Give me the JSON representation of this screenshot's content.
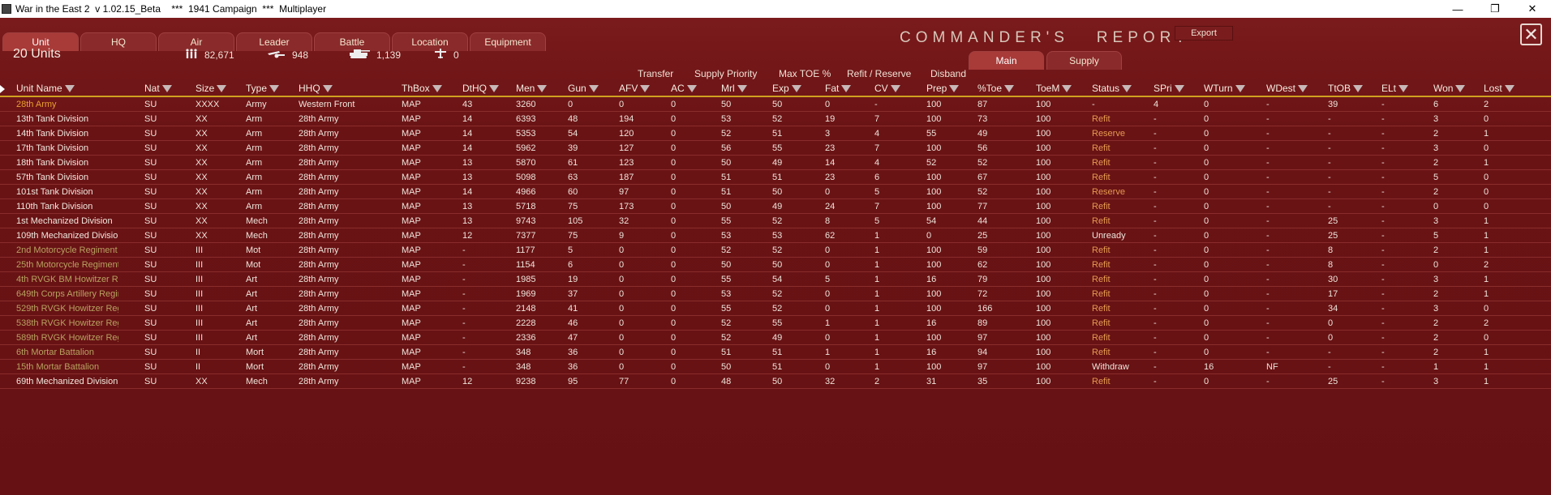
{
  "window": {
    "title": "War in the East 2  v 1.02.15_Beta    ***  1941 Campaign  ***  Multiplayer",
    "controls": {
      "minimize": "—",
      "restore": "❐",
      "close": "✕"
    }
  },
  "tabs": [
    "Unit",
    "HQ",
    "Air",
    "Leader",
    "Battle",
    "Location",
    "Equipment"
  ],
  "report_title": "COMMANDER'S   REPORT",
  "export_label": "Export",
  "close_label": "✕",
  "summary": {
    "units_count": "20 Units",
    "men": "82,671",
    "guns": "948",
    "afv": "1,139",
    "aircraft": "0"
  },
  "subtabs": [
    "Main",
    "Supply"
  ],
  "actions": [
    "Transfer",
    "Supply Priority",
    "Max TOE %",
    "Refit / Reserve",
    "Disband"
  ],
  "columns": [
    "Unit Name",
    "Nat",
    "Size",
    "Type",
    "HHQ",
    "ThBox",
    "DtHQ",
    "Men",
    "Gun",
    "AFV",
    "AC",
    "Mrl",
    "Exp",
    "Fat",
    "CV",
    "Prep",
    "%Toe",
    "ToeM",
    "Status",
    "SPri",
    "WTurn",
    "WDest",
    "TtOB",
    "ELt",
    "Won",
    "Lost"
  ],
  "rows": [
    {
      "style": "hq",
      "cells": [
        "28th Army",
        "SU",
        "XXXX",
        "Army",
        "Western Front",
        "MAP",
        "43",
        "3260",
        "0",
        "0",
        "0",
        "50",
        "50",
        "0",
        "-",
        "100",
        "87",
        "100",
        "-",
        "4",
        "0",
        "-",
        "39",
        "-",
        "6",
        "2"
      ]
    },
    {
      "style": "",
      "cells": [
        "13th Tank Division",
        "SU",
        "XX",
        "Arm",
        "28th Army",
        "MAP",
        "14",
        "6393",
        "48",
        "194",
        "0",
        "53",
        "52",
        "19",
        "7",
        "100",
        "73",
        "100",
        "Refit",
        "-",
        "0",
        "-",
        "-",
        "-",
        "3",
        "0"
      ]
    },
    {
      "style": "",
      "cells": [
        "14th Tank Division",
        "SU",
        "XX",
        "Arm",
        "28th Army",
        "MAP",
        "14",
        "5353",
        "54",
        "120",
        "0",
        "52",
        "51",
        "3",
        "4",
        "55",
        "49",
        "100",
        "Reserve",
        "-",
        "0",
        "-",
        "-",
        "-",
        "2",
        "1"
      ]
    },
    {
      "style": "",
      "cells": [
        "17th Tank Division",
        "SU",
        "XX",
        "Arm",
        "28th Army",
        "MAP",
        "14",
        "5962",
        "39",
        "127",
        "0",
        "56",
        "55",
        "23",
        "7",
        "100",
        "56",
        "100",
        "Refit",
        "-",
        "0",
        "-",
        "-",
        "-",
        "3",
        "0"
      ]
    },
    {
      "style": "",
      "cells": [
        "18th Tank Division",
        "SU",
        "XX",
        "Arm",
        "28th Army",
        "MAP",
        "13",
        "5870",
        "61",
        "123",
        "0",
        "50",
        "49",
        "14",
        "4",
        "52",
        "52",
        "100",
        "Refit",
        "-",
        "0",
        "-",
        "-",
        "-",
        "2",
        "1"
      ]
    },
    {
      "style": "",
      "cells": [
        "57th Tank Division",
        "SU",
        "XX",
        "Arm",
        "28th Army",
        "MAP",
        "13",
        "5098",
        "63",
        "187",
        "0",
        "51",
        "51",
        "23",
        "6",
        "100",
        "67",
        "100",
        "Refit",
        "-",
        "0",
        "-",
        "-",
        "-",
        "5",
        "0"
      ]
    },
    {
      "style": "",
      "cells": [
        "101st Tank Division",
        "SU",
        "XX",
        "Arm",
        "28th Army",
        "MAP",
        "14",
        "4966",
        "60",
        "97",
        "0",
        "51",
        "50",
        "0",
        "5",
        "100",
        "52",
        "100",
        "Reserve",
        "-",
        "0",
        "-",
        "-",
        "-",
        "2",
        "0"
      ]
    },
    {
      "style": "",
      "cells": [
        "110th Tank Division",
        "SU",
        "XX",
        "Arm",
        "28th Army",
        "MAP",
        "13",
        "5718",
        "75",
        "173",
        "0",
        "50",
        "49",
        "24",
        "7",
        "100",
        "77",
        "100",
        "Refit",
        "-",
        "0",
        "-",
        "-",
        "-",
        "0",
        "0"
      ]
    },
    {
      "style": "",
      "cells": [
        "1st Mechanized Division",
        "SU",
        "XX",
        "Mech",
        "28th Army",
        "MAP",
        "13",
        "9743",
        "105",
        "32",
        "0",
        "55",
        "52",
        "8",
        "5",
        "54",
        "44",
        "100",
        "Refit",
        "-",
        "0",
        "-",
        "25",
        "-",
        "3",
        "1"
      ]
    },
    {
      "style": "",
      "cells": [
        "109th Mechanized Division",
        "SU",
        "XX",
        "Mech",
        "28th Army",
        "MAP",
        "12",
        "7377",
        "75",
        "9",
        "0",
        "53",
        "53",
        "62",
        "1",
        "0",
        "25",
        "100",
        "Unready",
        "-",
        "0",
        "-",
        "25",
        "-",
        "5",
        "1"
      ]
    },
    {
      "style": "olive",
      "cells": [
        "2nd Motorcycle Regiment",
        "SU",
        "III",
        "Mot",
        "28th Army",
        "MAP",
        "-",
        "1177",
        "5",
        "0",
        "0",
        "52",
        "52",
        "0",
        "1",
        "100",
        "59",
        "100",
        "Refit",
        "-",
        "0",
        "-",
        "8",
        "-",
        "2",
        "1"
      ]
    },
    {
      "style": "olive",
      "cells": [
        "25th Motorcycle Regiment",
        "SU",
        "III",
        "Mot",
        "28th Army",
        "MAP",
        "-",
        "1154",
        "6",
        "0",
        "0",
        "50",
        "50",
        "0",
        "1",
        "100",
        "62",
        "100",
        "Refit",
        "-",
        "0",
        "-",
        "8",
        "-",
        "0",
        "2"
      ]
    },
    {
      "style": "olive",
      "cells": [
        "4th RVGK BM Howitzer Regiment",
        "SU",
        "III",
        "Art",
        "28th Army",
        "MAP",
        "-",
        "1985",
        "19",
        "0",
        "0",
        "55",
        "54",
        "5",
        "1",
        "16",
        "79",
        "100",
        "Refit",
        "-",
        "0",
        "-",
        "30",
        "-",
        "3",
        "1"
      ]
    },
    {
      "style": "olive",
      "cells": [
        "649th Corps Artillery Regiment",
        "SU",
        "III",
        "Art",
        "28th Army",
        "MAP",
        "-",
        "1969",
        "37",
        "0",
        "0",
        "53",
        "52",
        "0",
        "1",
        "100",
        "72",
        "100",
        "Refit",
        "-",
        "0",
        "-",
        "17",
        "-",
        "2",
        "1"
      ]
    },
    {
      "style": "olive",
      "cells": [
        "529th RVGK Howitzer Regiment",
        "SU",
        "III",
        "Art",
        "28th Army",
        "MAP",
        "-",
        "2148",
        "41",
        "0",
        "0",
        "55",
        "52",
        "0",
        "1",
        "100",
        "166",
        "100",
        "Refit",
        "-",
        "0",
        "-",
        "34",
        "-",
        "3",
        "0"
      ]
    },
    {
      "style": "olive",
      "cells": [
        "538th RVGK Howitzer Regiment",
        "SU",
        "III",
        "Art",
        "28th Army",
        "MAP",
        "-",
        "2228",
        "46",
        "0",
        "0",
        "52",
        "55",
        "1",
        "1",
        "16",
        "89",
        "100",
        "Refit",
        "-",
        "0",
        "-",
        "0",
        "-",
        "2",
        "2"
      ]
    },
    {
      "style": "olive",
      "cells": [
        "589th RVGK Howitzer Regiment",
        "SU",
        "III",
        "Art",
        "28th Army",
        "MAP",
        "-",
        "2336",
        "47",
        "0",
        "0",
        "52",
        "49",
        "0",
        "1",
        "100",
        "97",
        "100",
        "Refit",
        "-",
        "0",
        "-",
        "0",
        "-",
        "2",
        "0"
      ]
    },
    {
      "style": "olive",
      "cells": [
        "6th Mortar Battalion",
        "SU",
        "II",
        "Mort",
        "28th Army",
        "MAP",
        "-",
        "348",
        "36",
        "0",
        "0",
        "51",
        "51",
        "1",
        "1",
        "16",
        "94",
        "100",
        "Refit",
        "-",
        "0",
        "-",
        "-",
        "-",
        "2",
        "1"
      ]
    },
    {
      "style": "olive",
      "cells": [
        "15th Mortar Battalion",
        "SU",
        "II",
        "Mort",
        "28th Army",
        "MAP",
        "-",
        "348",
        "36",
        "0",
        "0",
        "50",
        "51",
        "0",
        "1",
        "100",
        "97",
        "100",
        "Withdraw",
        "-",
        "16",
        "NF",
        "-",
        "-",
        "1",
        "1"
      ]
    },
    {
      "style": "",
      "cells": [
        "69th Mechanized Division",
        "SU",
        "XX",
        "Mech",
        "28th Army",
        "MAP",
        "12",
        "9238",
        "95",
        "77",
        "0",
        "48",
        "50",
        "32",
        "2",
        "31",
        "35",
        "100",
        "Refit",
        "-",
        "0",
        "-",
        "25",
        "-",
        "3",
        "1"
      ]
    }
  ]
}
